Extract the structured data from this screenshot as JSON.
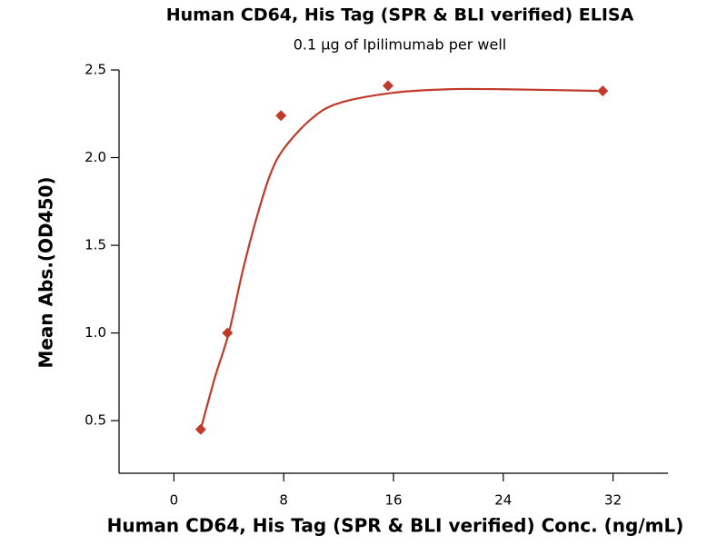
{
  "chart_data": {
    "type": "scatter",
    "title": "Human CD64, His Tag (SPR & BLI verified) ELISA",
    "subtitle": "0.1 μg of Ipilimumab per well",
    "x_label": "Human CD64, His Tag (SPR & BLI verified) Conc. (ng/mL)",
    "y_label": "Mean Abs.(OD450)",
    "series": [
      {
        "x": [
          1.95,
          3.9,
          7.8,
          15.6,
          31.25
        ],
        "values": [
          0.45,
          1.0,
          2.24,
          2.41,
          2.38
        ],
        "color": "#c0392b"
      }
    ],
    "fit": {
      "x": [
        1.95,
        3,
        4,
        5,
        6,
        7,
        8,
        10,
        12,
        16,
        20,
        24,
        31.25
      ],
      "values": [
        0.45,
        0.75,
        1.0,
        1.35,
        1.65,
        1.9,
        2.05,
        2.22,
        2.31,
        2.37,
        2.39,
        2.39,
        2.38
      ],
      "color": "#c0392b"
    },
    "xlim": [
      -4,
      36
    ],
    "xticks": [
      0,
      8,
      16,
      24,
      32
    ],
    "ylim": [
      0.2,
      2.5
    ],
    "yticks": [
      0.5,
      {
        "value": 1.0,
        "label": "1.0"
      },
      1.5,
      {
        "value": 2.0,
        "label": "2.0"
      },
      2.5
    ]
  }
}
